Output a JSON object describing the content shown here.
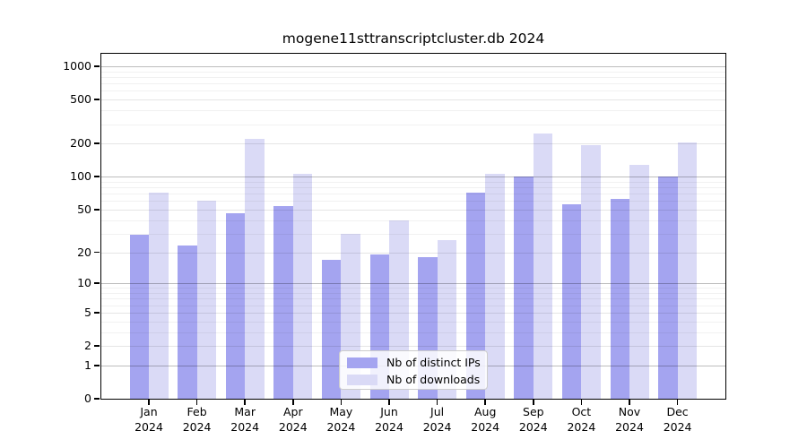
{
  "title": "mogene11sttranscriptcluster.db 2024",
  "colors": {
    "distinct_ips_bar": "#a4a4f0",
    "downloads_bar": "#dadaf6",
    "axis": "#000000"
  },
  "legend": {
    "items": [
      {
        "label": "Nb of distinct IPs",
        "color": "#a4a4f0"
      },
      {
        "label": "Nb of downloads",
        "color": "#dadaf6"
      }
    ]
  },
  "chart_data": {
    "type": "bar",
    "title": "mogene11sttranscriptcluster.db 2024",
    "categories": [
      "Jan",
      "Feb",
      "Mar",
      "Apr",
      "May",
      "Jun",
      "Jul",
      "Aug",
      "Sep",
      "Oct",
      "Nov",
      "Dec"
    ],
    "x_year_label": "2024",
    "series": [
      {
        "name": "Nb of distinct IPs",
        "color": "#a4a4f0",
        "values": [
          29,
          23,
          46,
          54,
          17,
          19,
          18,
          72,
          100,
          56,
          63,
          100
        ]
      },
      {
        "name": "Nb of downloads",
        "color": "#dadaf6",
        "values": [
          72,
          60,
          219,
          106,
          30,
          40,
          26,
          107,
          245,
          192,
          128,
          203
        ]
      }
    ],
    "xlabel": "",
    "ylabel": "",
    "yscale": "log10(1+v)",
    "yticks": [
      0,
      1,
      2,
      5,
      10,
      20,
      50,
      100,
      200,
      500,
      1000
    ],
    "ylim_top_value": 1300,
    "grid": true,
    "legend_position": "lower center"
  }
}
